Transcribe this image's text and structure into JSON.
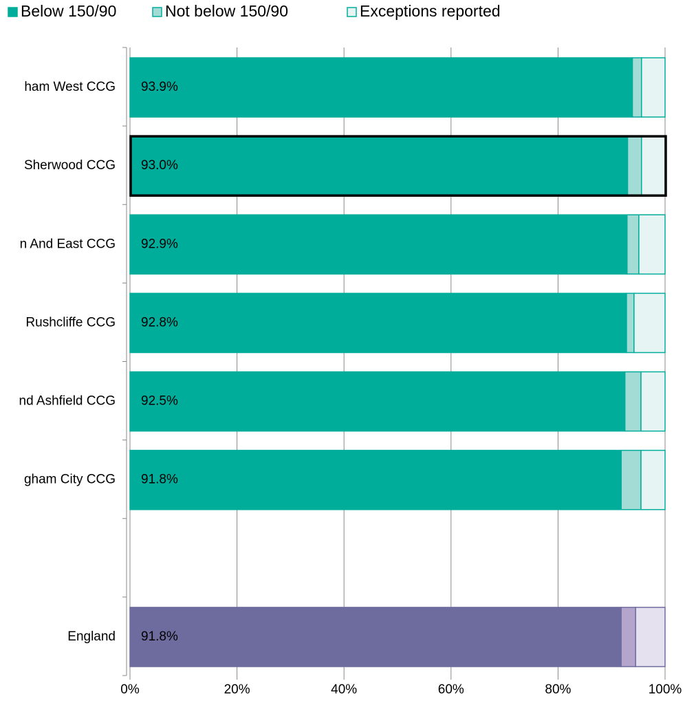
{
  "chart_data": {
    "type": "stacked-bar-horizontal",
    "categories": [
      "ham West CCG",
      "Sherwood CCG",
      "n And East CCG",
      "Rushcliffe CCG",
      "nd Ashfield CCG",
      "gham City CCG",
      null,
      "England"
    ],
    "series": [
      {
        "name": "Below 150/90",
        "color": "#00ad9b",
        "colors": [
          "#00ad9b",
          "#00ad9b",
          "#00ad9b",
          "#00ad9b",
          "#00ad9b",
          "#00ad9b",
          null,
          "#6e6c9e"
        ],
        "values": [
          93.9,
          93.0,
          92.9,
          92.8,
          92.5,
          91.8,
          null,
          91.8
        ],
        "value_labels": [
          "93.9%",
          "93.0%",
          "92.9%",
          "92.8%",
          "92.5%",
          "91.8%",
          null,
          "91.8%"
        ]
      },
      {
        "name": "Not below 150/90",
        "color": "#a3dcd5",
        "colors": [
          "#a3dcd5",
          "#a3dcd5",
          "#a3dcd5",
          "#a3dcd5",
          "#a3dcd5",
          "#a3dcd5",
          null,
          "#b4a5cc"
        ],
        "values": [
          1.7,
          2.6,
          2.2,
          1.4,
          3.0,
          3.7,
          null,
          2.7
        ]
      },
      {
        "name": "Exceptions reported",
        "color": "#e6f5f3",
        "colors": [
          "#e6f5f3",
          "#e6f5f3",
          "#e6f5f3",
          "#e6f5f3",
          "#e6f5f3",
          "#e6f5f3",
          null,
          "#e6e1ef"
        ],
        "values": [
          4.4,
          4.4,
          4.9,
          5.8,
          4.5,
          4.5,
          null,
          5.5
        ]
      }
    ],
    "border_colors": [
      "#00ad9b",
      "#00ad9b",
      "#00ad9b",
      "#00ad9b",
      "#00ad9b",
      "#00ad9b",
      null,
      "#6e6c9e"
    ],
    "highlight_index": 1,
    "xlim": [
      0,
      100
    ],
    "xticks": [
      {
        "value": 0,
        "label": "0%"
      },
      {
        "value": 20,
        "label": "20%"
      },
      {
        "value": 40,
        "label": "40%"
      },
      {
        "value": 60,
        "label": "60%"
      },
      {
        "value": 80,
        "label": "80%"
      },
      {
        "value": 100,
        "label": "100%"
      }
    ],
    "grid": true,
    "legend": "top"
  }
}
